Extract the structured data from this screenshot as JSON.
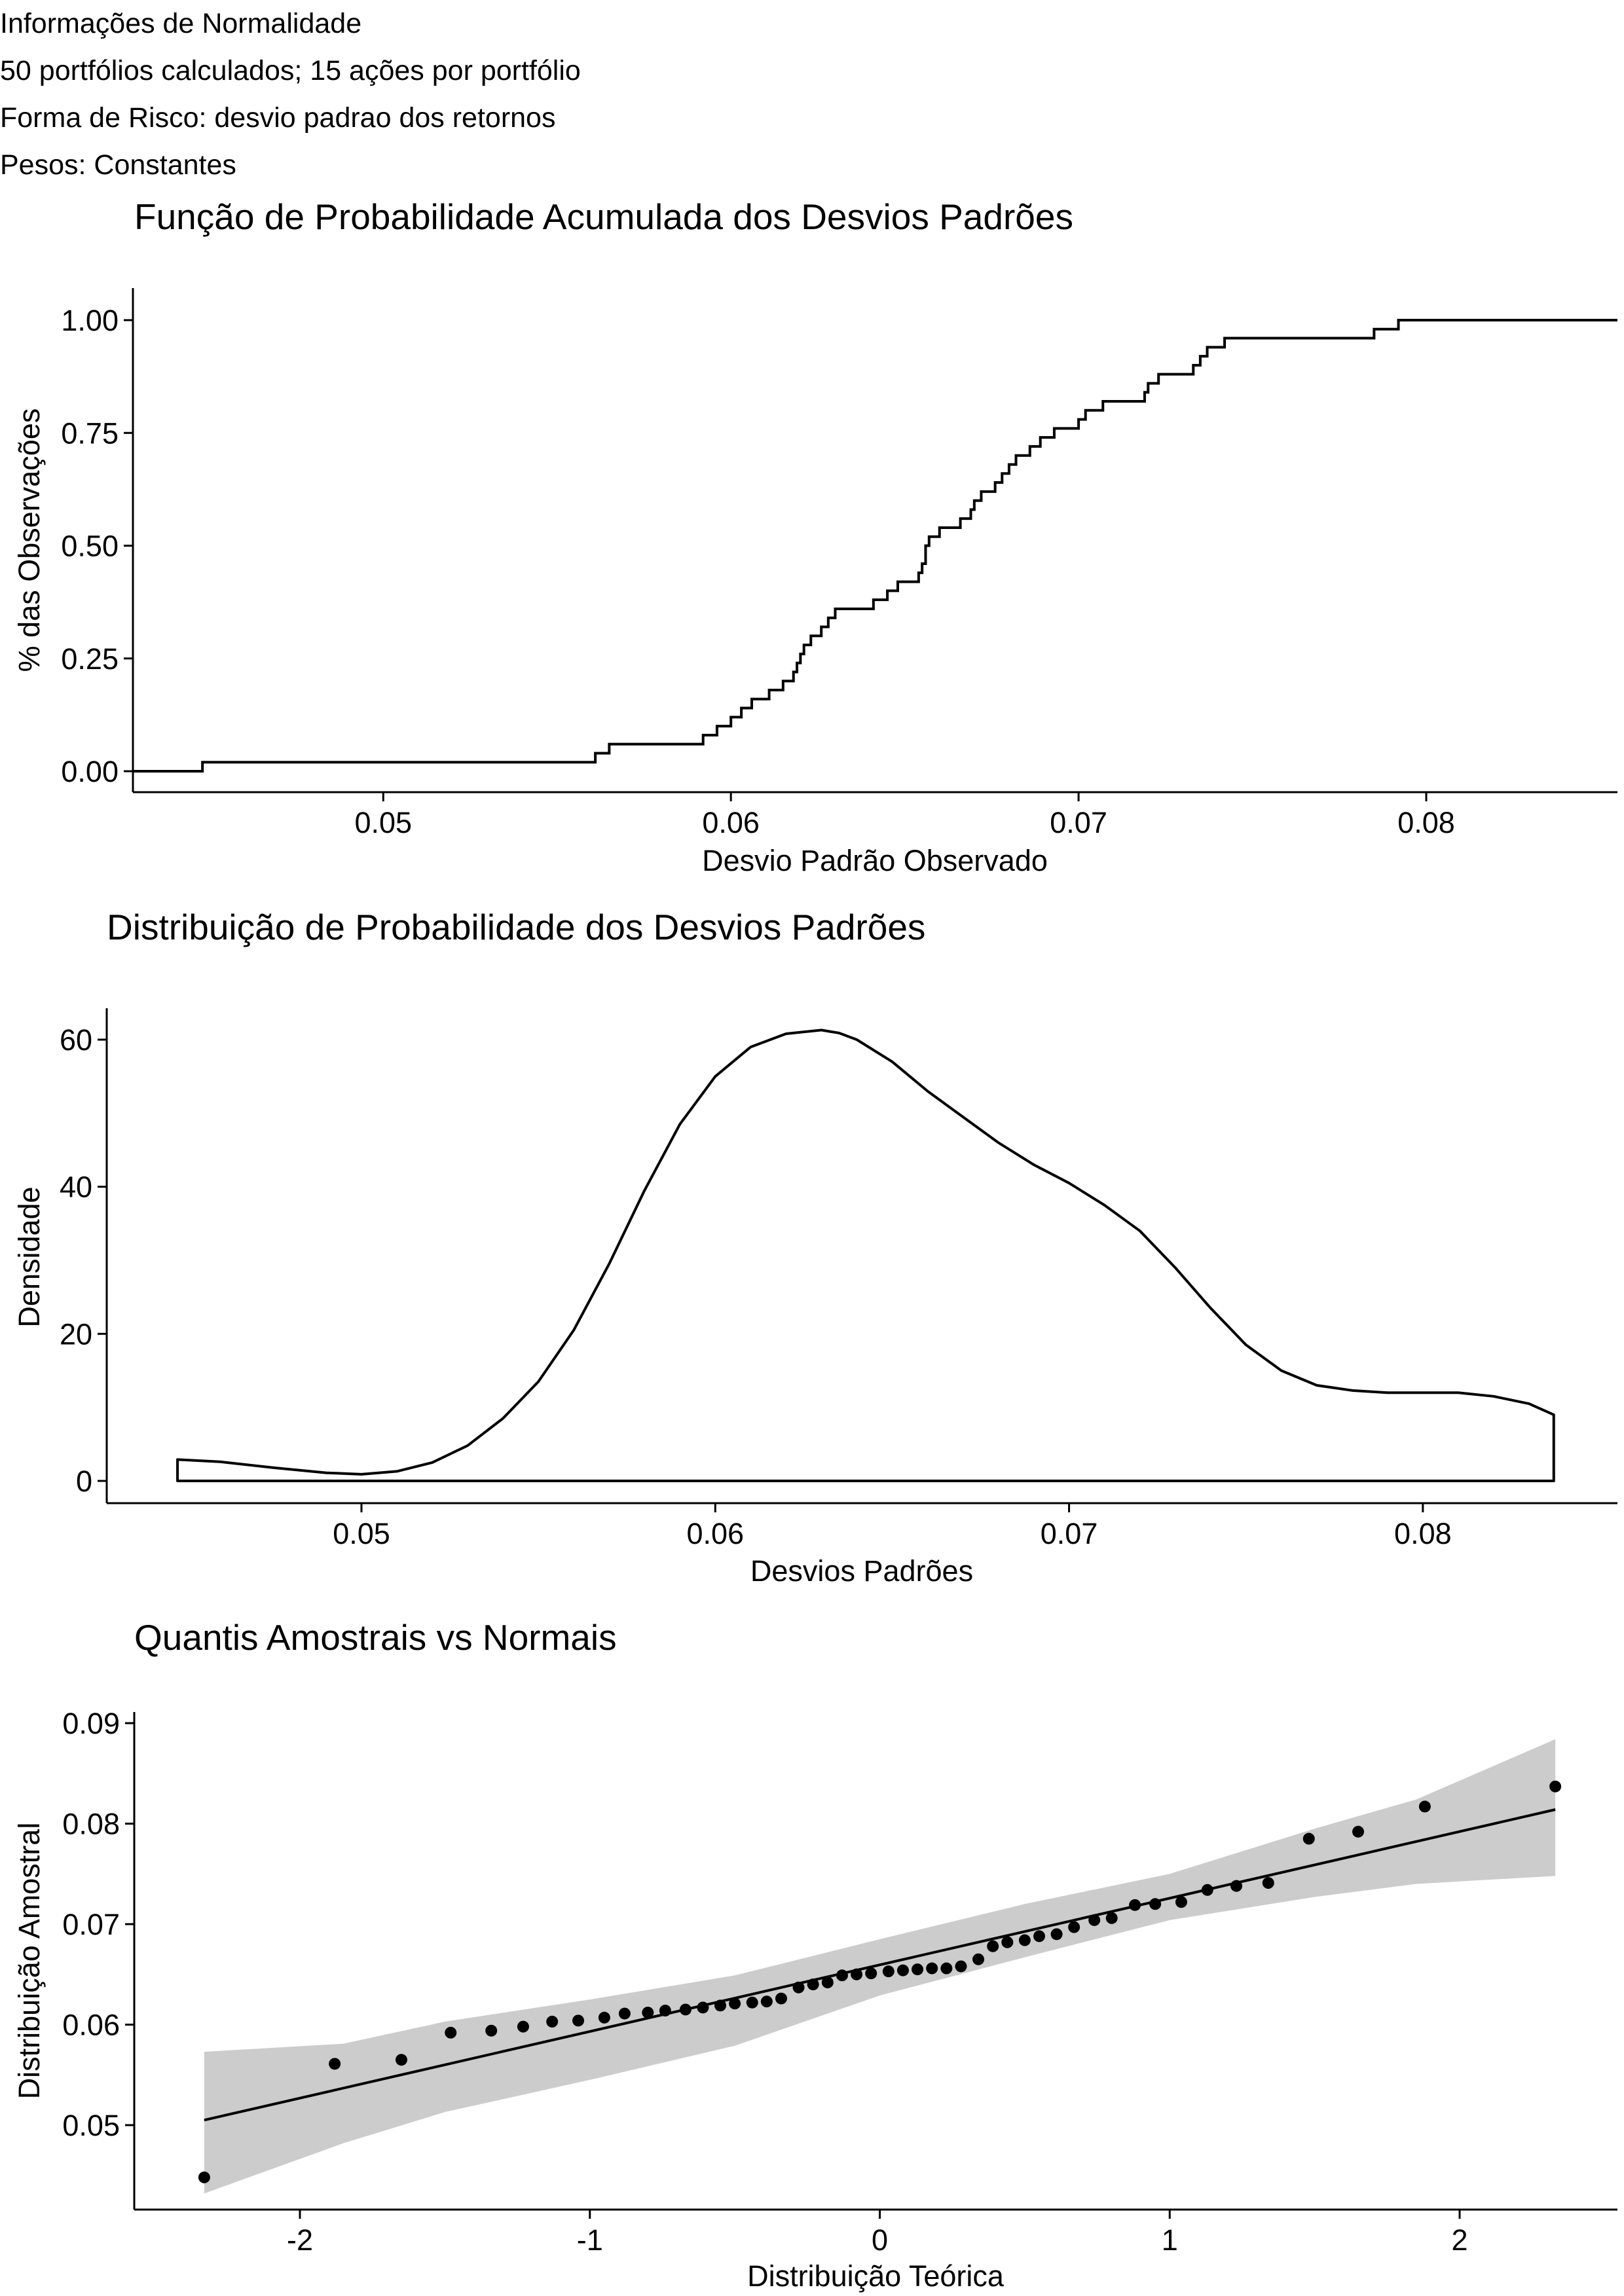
{
  "header": {
    "line1": "Informações de Normalidade",
    "line2": "50 portfólios calculados; 15 ações por portfólio",
    "line3": "Forma de Risco: desvio padrao dos retornos",
    "line4": "Pesos: Constantes"
  },
  "colors": {
    "line": "#000000",
    "band": "#cccccc",
    "background": "#ffffff"
  },
  "chart_data": [
    {
      "type": "line",
      "step": true,
      "title": "Função de Probabilidade Acumulada dos Desvios Padrões",
      "xlabel": "Desvio Padrão Observado",
      "ylabel": "% das Observações",
      "xlim": [
        0.0428,
        0.0855
      ],
      "ylim": [
        -0.05,
        1.05
      ],
      "xticks": [
        "0.05",
        "0.06",
        "0.07",
        "0.08"
      ],
      "yticks": [
        "0.00",
        "0.25",
        "0.50",
        "0.75",
        "1.00"
      ],
      "grid": false,
      "x": [
        0.0428,
        0.0448,
        0.0561,
        0.0565,
        0.0592,
        0.0596,
        0.06,
        0.0603,
        0.0606,
        0.0611,
        0.0615,
        0.0618,
        0.0619,
        0.062,
        0.0621,
        0.0623,
        0.0626,
        0.0628,
        0.063,
        0.0641,
        0.0645,
        0.0648,
        0.0654,
        0.0655,
        0.0656,
        0.0657,
        0.066,
        0.0666,
        0.0669,
        0.067,
        0.0672,
        0.0676,
        0.0678,
        0.068,
        0.0682,
        0.0686,
        0.0689,
        0.0693,
        0.07,
        0.0702,
        0.0707,
        0.0719,
        0.072,
        0.0723,
        0.0733,
        0.0735,
        0.0737,
        0.0742,
        0.0785,
        0.0792,
        0.0817,
        0.0818,
        0.0837,
        0.0855
      ],
      "y": [
        0.0,
        0.02,
        0.04,
        0.06,
        0.08,
        0.1,
        0.12,
        0.14,
        0.16,
        0.18,
        0.2,
        0.22,
        0.24,
        0.26,
        0.28,
        0.3,
        0.32,
        0.34,
        0.36,
        0.38,
        0.4,
        0.42,
        0.44,
        0.46,
        0.5,
        0.52,
        0.54,
        0.56,
        0.58,
        0.6,
        0.62,
        0.64,
        0.66,
        0.68,
        0.7,
        0.72,
        0.74,
        0.76,
        0.78,
        0.8,
        0.82,
        0.84,
        0.86,
        0.88,
        0.9,
        0.92,
        0.94,
        0.96,
        0.98,
        1.0,
        1.0,
        1.0,
        1.0,
        1.0
      ]
    },
    {
      "type": "area",
      "title": "Distribuição de Probabilidade dos Desvios Padrões",
      "xlabel": "Desvios Padrões",
      "ylabel": "Densidade",
      "xlim": [
        0.0428,
        0.0855
      ],
      "ylim": [
        -3,
        63
      ],
      "xticks": [
        "0.05",
        "0.06",
        "0.07",
        "0.08"
      ],
      "yticks": [
        "0",
        "20",
        "40",
        "60"
      ],
      "grid": false,
      "x": [
        0.0448,
        0.046,
        0.0475,
        0.049,
        0.05,
        0.051,
        0.052,
        0.053,
        0.054,
        0.055,
        0.056,
        0.057,
        0.058,
        0.059,
        0.06,
        0.061,
        0.062,
        0.063,
        0.0635,
        0.064,
        0.065,
        0.066,
        0.067,
        0.068,
        0.069,
        0.07,
        0.071,
        0.072,
        0.073,
        0.074,
        0.075,
        0.076,
        0.077,
        0.078,
        0.079,
        0.08,
        0.081,
        0.082,
        0.083,
        0.0837
      ],
      "y": [
        2.9,
        2.6,
        1.8,
        1.1,
        0.9,
        1.3,
        2.5,
        4.8,
        8.5,
        13.5,
        20.5,
        29.5,
        39.5,
        48.5,
        55,
        59,
        60.8,
        61.3,
        60.9,
        60.0,
        57.0,
        53.0,
        49.5,
        46.0,
        43.0,
        40.5,
        37.5,
        34.0,
        29.0,
        23.5,
        18.5,
        15.0,
        13.0,
        12.3,
        12.0,
        12.0,
        12.0,
        11.5,
        10.5,
        9.0
      ]
    },
    {
      "type": "scatter",
      "title": "Quantis Amostrais vs Normais",
      "xlabel": "Distribuição Teórica",
      "ylabel": "Distribuição Amostral",
      "xlim": [
        -2.55,
        2.55
      ],
      "ylim": [
        0.0425,
        0.0905
      ],
      "xticks": [
        "-2",
        "-1",
        "0",
        "1",
        "2"
      ],
      "yticks": [
        "0.05",
        "0.06",
        "0.07",
        "0.08",
        "0.09"
      ],
      "grid": false,
      "x": [
        -2.33,
        -1.88,
        -1.65,
        -1.48,
        -1.34,
        -1.23,
        -1.13,
        -1.04,
        -0.95,
        -0.88,
        -0.8,
        -0.74,
        -0.67,
        -0.61,
        -0.55,
        -0.5,
        -0.44,
        -0.39,
        -0.34,
        -0.28,
        -0.23,
        -0.18,
        -0.13,
        -0.08,
        -0.03,
        0.03,
        0.08,
        0.13,
        0.18,
        0.23,
        0.28,
        0.34,
        0.39,
        0.44,
        0.5,
        0.55,
        0.61,
        0.67,
        0.74,
        0.8,
        0.88,
        0.95,
        1.04,
        1.13,
        1.23,
        1.34,
        1.48,
        1.65,
        1.88,
        2.33
      ],
      "y": [
        0.0448,
        0.0561,
        0.0565,
        0.0592,
        0.0594,
        0.0598,
        0.0603,
        0.0604,
        0.0607,
        0.0611,
        0.0612,
        0.0614,
        0.0615,
        0.0617,
        0.0619,
        0.0621,
        0.0622,
        0.0623,
        0.0626,
        0.0637,
        0.064,
        0.0642,
        0.0649,
        0.065,
        0.0651,
        0.0653,
        0.0654,
        0.0655,
        0.0656,
        0.0656,
        0.0658,
        0.0665,
        0.0678,
        0.0682,
        0.0684,
        0.0688,
        0.069,
        0.0697,
        0.0704,
        0.0706,
        0.0719,
        0.072,
        0.0722,
        0.0734,
        0.0738,
        0.0741,
        0.0785,
        0.0792,
        0.0817,
        0.0837
      ],
      "reference_line": {
        "x": [
          -2.33,
          2.33
        ],
        "y": [
          0.0505,
          0.0814
        ]
      },
      "band": {
        "x": [
          -2.33,
          -1.85,
          -1.5,
          -1.0,
          -0.5,
          0.0,
          0.5,
          1.0,
          1.5,
          1.85,
          2.33
        ],
        "lower": [
          0.0432,
          0.0482,
          0.0513,
          0.0545,
          0.0579,
          0.0629,
          0.0667,
          0.0704,
          0.0727,
          0.074,
          0.0748
        ],
        "upper": [
          0.0573,
          0.0581,
          0.0603,
          0.0625,
          0.0649,
          0.0685,
          0.072,
          0.075,
          0.0795,
          0.0824,
          0.0884
        ]
      }
    }
  ]
}
